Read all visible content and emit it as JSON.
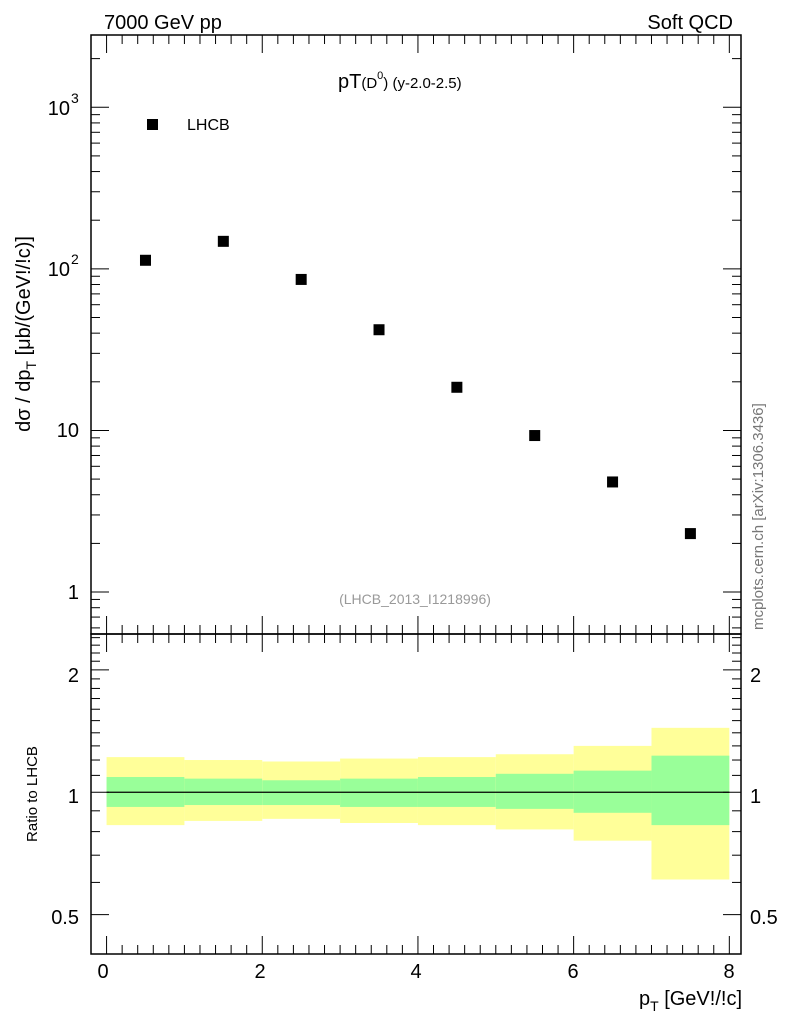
{
  "header": {
    "left": "7000 GeV pp",
    "right": "Soft QCD"
  },
  "side_label": "mcplots.cern.ch [arXiv:1306.3436]",
  "chart_data": [
    {
      "type": "scatter",
      "title_main": "pT",
      "title_sub": "(D",
      "title_sup": "0",
      "title_close": ")",
      "title_tail": " (y-2.0-2.5)",
      "ylabel_main": "dσ / dp",
      "ylabel_sub": "T",
      "ylabel_tail": " [μb/(GeV!/!c)]",
      "yscale": "log",
      "ylim": [
        0.55,
        2800
      ],
      "xlim": [
        -0.2,
        8.15
      ],
      "y_tick_labels": [
        {
          "value": 1,
          "label": "1"
        },
        {
          "value": 10,
          "label": "10"
        },
        {
          "value": 100,
          "label": "10",
          "sup": "2"
        },
        {
          "value": 1000,
          "label": "10",
          "sup": "3"
        }
      ],
      "legend": {
        "position": "top-left",
        "entries": [
          "LHCB"
        ]
      },
      "annotation": "(LHCB_2013_I1218996)",
      "series": [
        {
          "name": "LHCB",
          "x": [
            0.5,
            1.5,
            2.5,
            3.5,
            4.5,
            5.5,
            6.5,
            7.5
          ],
          "y": [
            113,
            148,
            86,
            42,
            18.5,
            9.3,
            4.8,
            2.3
          ]
        }
      ]
    },
    {
      "type": "area",
      "ylabel": "Ratio to LHCB",
      "yscale": "log",
      "ylim": [
        0.4,
        2.45
      ],
      "xlim": [
        -0.2,
        8.15
      ],
      "xlabel_main": "p",
      "xlabel_sub": "T",
      "xlabel_tail": " [GeV!/!c]",
      "x_tick_labels": [
        {
          "value": 0,
          "label": "0"
        },
        {
          "value": 2,
          "label": "2"
        },
        {
          "value": 4,
          "label": "4"
        },
        {
          "value": 6,
          "label": "6"
        },
        {
          "value": 8,
          "label": "8"
        }
      ],
      "y_tick_labels": [
        {
          "value": 0.5,
          "label": "0.5"
        },
        {
          "value": 1,
          "label": "1"
        },
        {
          "value": 2,
          "label": "2"
        }
      ],
      "reference_line": 1,
      "bins": [
        [
          0,
          1
        ],
        [
          1,
          2
        ],
        [
          2,
          3
        ],
        [
          3,
          4
        ],
        [
          4,
          5
        ],
        [
          5,
          6
        ],
        [
          6,
          7
        ],
        [
          7,
          8
        ]
      ],
      "band_outer": {
        "color": "#ffff99",
        "low": [
          0.83,
          0.85,
          0.86,
          0.84,
          0.83,
          0.81,
          0.76,
          0.61
        ],
        "high": [
          1.22,
          1.2,
          1.19,
          1.21,
          1.22,
          1.24,
          1.3,
          1.44
        ]
      },
      "band_inner": {
        "color": "#99ff99",
        "low": [
          0.92,
          0.93,
          0.93,
          0.92,
          0.92,
          0.91,
          0.89,
          0.83
        ],
        "high": [
          1.09,
          1.08,
          1.07,
          1.08,
          1.09,
          1.11,
          1.13,
          1.23
        ]
      }
    }
  ]
}
